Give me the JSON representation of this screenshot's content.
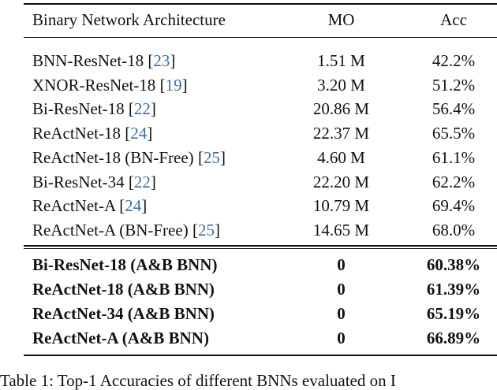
{
  "table": {
    "headers": {
      "architecture": "Binary Network Architecture",
      "mo": "MO",
      "acc": "Acc"
    },
    "rows": [
      {
        "name": "BNN-ResNet-18",
        "cite": "23",
        "mo": "1.51 M",
        "acc": "42.2%"
      },
      {
        "name": "XNOR-ResNet-18",
        "cite": "19",
        "mo": "3.20 M",
        "acc": "51.2%"
      },
      {
        "name": "Bi-ResNet-18",
        "cite": "22",
        "mo": "20.86 M",
        "acc": "56.4%"
      },
      {
        "name": "ReActNet-18",
        "cite": "24",
        "mo": "22.37 M",
        "acc": "65.5%"
      },
      {
        "name": "ReActNet-18 (BN-Free)",
        "cite": "25",
        "mo": "4.60 M",
        "acc": "61.1%"
      },
      {
        "name": "Bi-ResNet-34",
        "cite": "22",
        "mo": "22.20 M",
        "acc": "62.2%"
      },
      {
        "name": "ReActNet-A",
        "cite": "24",
        "mo": "10.79 M",
        "acc": "69.4%"
      },
      {
        "name": "ReActNet-A (BN-Free)",
        "cite": "25",
        "mo": "14.65 M",
        "acc": "68.0%"
      }
    ],
    "ours": [
      {
        "name": "Bi-ResNet-18 (A&B BNN)",
        "mo": "0",
        "acc": "60.38%"
      },
      {
        "name": "ReActNet-18 (A&B BNN)",
        "mo": "0",
        "acc": "61.39%"
      },
      {
        "name": "ReActNet-34 (A&B BNN)",
        "mo": "0",
        "acc": "65.19%"
      },
      {
        "name": "ReActNet-A (A&B BNN)",
        "mo": "0",
        "acc": "66.89%"
      }
    ]
  },
  "caption": "Table 1: Top-1 Accuracies of different BNNs evaluated on I"
}
